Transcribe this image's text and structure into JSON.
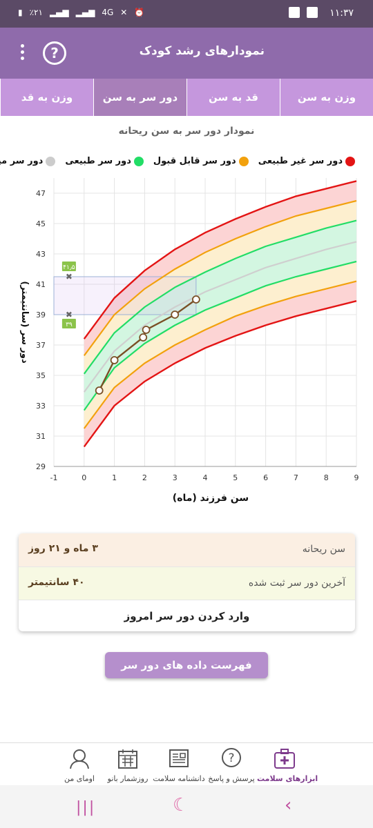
{
  "status": {
    "time": "۱۱:۳۷",
    "battery": "٪۲۱",
    "network": "4G"
  },
  "appbar": {
    "title": "نمودارهای رشد کودک",
    "help_glyph": "?"
  },
  "tabs": [
    {
      "label": "وزن به سن",
      "active": false
    },
    {
      "label": "قد به سن",
      "active": false
    },
    {
      "label": "دور سر به سن",
      "active": true
    },
    {
      "label": "وزن به قد",
      "active": false
    }
  ],
  "chart_data": {
    "type": "line",
    "title": "نمودار دور سر به سن ریحانه",
    "xlabel": "سن فرزند (ماه)",
    "ylabel": "دور سر (سانتیمتر)",
    "xlim": [
      -1,
      9
    ],
    "ylim": [
      29,
      48
    ],
    "xticks": [
      "-1",
      "0",
      "1",
      "2",
      "3",
      "4",
      "5",
      "6",
      "7",
      "8",
      "9"
    ],
    "yticks": [
      "29",
      "31",
      "33",
      "35",
      "37",
      "39",
      "41",
      "43",
      "45",
      "47"
    ],
    "legend": [
      {
        "label": "دور سر غیر طبیعی",
        "color": "#e31414"
      },
      {
        "label": "دور سر قابل قبول",
        "color": "#f2a10d"
      },
      {
        "label": "دور سر طبیعی",
        "color": "#22dd66"
      },
      {
        "label": "دور سر میانگین",
        "color": "#cccccc"
      }
    ],
    "x": [
      0,
      1,
      2,
      3,
      4,
      5,
      6,
      7,
      8,
      9
    ],
    "curves": {
      "red_upper": [
        37.4,
        40.1,
        41.9,
        43.3,
        44.4,
        45.3,
        46.1,
        46.8,
        47.3,
        47.8
      ],
      "orange_upper": [
        36.3,
        39.0,
        40.7,
        42.0,
        43.1,
        44.0,
        44.8,
        45.5,
        46.0,
        46.5
      ],
      "green_upper": [
        35.1,
        37.8,
        39.5,
        40.8,
        41.8,
        42.7,
        43.5,
        44.1,
        44.7,
        45.2
      ],
      "median": [
        33.9,
        36.6,
        38.3,
        39.5,
        40.5,
        41.3,
        42.1,
        42.7,
        43.3,
        43.8
      ],
      "green_lower": [
        32.7,
        35.5,
        37.1,
        38.3,
        39.3,
        40.1,
        40.9,
        41.5,
        42.0,
        42.5
      ],
      "orange_lower": [
        31.5,
        34.2,
        35.8,
        37.0,
        38.0,
        38.9,
        39.6,
        40.2,
        40.7,
        41.2
      ],
      "red_lower": [
        30.3,
        33.0,
        34.6,
        35.8,
        36.8,
        37.6,
        38.3,
        38.9,
        39.4,
        39.9
      ]
    },
    "measurements": {
      "x": [
        0.5,
        1.0,
        1.95,
        2.05,
        3.0,
        3.7
      ],
      "y": [
        34.0,
        36.0,
        37.5,
        38.0,
        39.0,
        40.0
      ]
    },
    "range_markers": [
      {
        "label": "۴۱٫۵",
        "value": 41.5
      },
      {
        "label": "۳۹",
        "value": 39
      }
    ],
    "range_band": {
      "x_end": 3.7,
      "y_low": 39,
      "y_high": 41.5
    }
  },
  "card": {
    "age_label": "سن ریحانه",
    "age_value": "۳ ماه و ۲۱ روز",
    "last_label": "آخرین دور سر ثبت شده",
    "last_value": "۴۰ سانتیمتر",
    "enter_label": "وارد کردن دور سر امروز"
  },
  "list_button": "فهرست داده های دور سر ریحانه",
  "bottom_nav": [
    {
      "label": "ابزارهای سلامت",
      "icon": "medical-kit-icon",
      "active": true
    },
    {
      "label": "پرسش و پاسخ",
      "icon": "question-icon",
      "active": false
    },
    {
      "label": "دانشنامه سلامت",
      "icon": "newspaper-icon",
      "active": false
    },
    {
      "label": "روزشمار بانو",
      "icon": "calendar-icon",
      "active": false
    },
    {
      "label": "اومای من",
      "icon": "profile-icon",
      "active": false
    }
  ]
}
